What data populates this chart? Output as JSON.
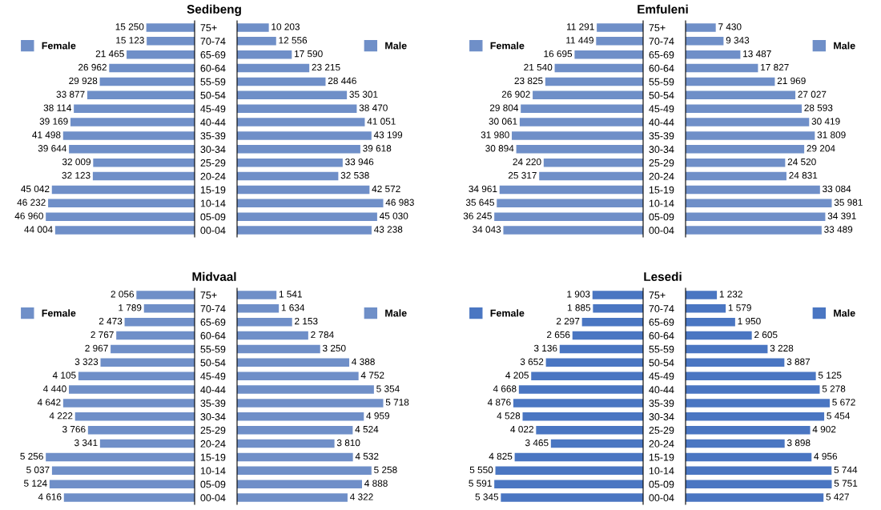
{
  "chart_data": [
    {
      "type": "bar",
      "orientation": "horizontal",
      "title": "Sedibeng",
      "categories": [
        "75+",
        "70-74",
        "65-69",
        "60-64",
        "55-59",
        "50-54",
        "45-49",
        "40-44",
        "35-39",
        "30-34",
        "25-29",
        "20-24",
        "15-19",
        "10-14",
        "05-09",
        "00-04"
      ],
      "tick_labels": "y",
      "legend": "top left",
      "series": [
        {
          "name": "Female",
          "color": "#6f8fc8",
          "values": [
            15250,
            15123,
            21465,
            26962,
            29928,
            33877,
            38114,
            39169,
            41498,
            39644,
            32009,
            32123,
            45042,
            46232,
            46960,
            44004
          ],
          "value_labels": [
            "15 250",
            "15 123",
            "21 465",
            "26 962",
            "29 928",
            "33 877",
            "38 114",
            "39 169",
            "41 498",
            "39 644",
            "32 009",
            "32 123",
            "45 042",
            "46 232",
            "46 960",
            "44 004"
          ]
        }
      ]
    },
    {
      "type": "bar",
      "orientation": "horizontal",
      "categories": [
        null,
        null,
        null,
        null,
        null,
        null,
        null,
        null,
        null,
        null,
        null,
        null,
        null,
        null,
        null,
        null
      ],
      "tick_labels": false,
      "legend": "top right",
      "series": [
        {
          "name": "Male",
          "color": "#6f8fc8",
          "values": [
            10203,
            12556,
            17590,
            23215,
            28446,
            35301,
            38470,
            41051,
            43199,
            39618,
            33946,
            32538,
            42572,
            46983,
            45030,
            43238
          ],
          "value_labels": [
            "10 203",
            "12 556",
            "17 590",
            "23 215",
            "28 446",
            "35 301",
            "38 470",
            "41 051",
            "43 199",
            "39 618",
            "33 946",
            "32 538",
            "42 572",
            "46 983",
            "45 030",
            "43 238"
          ]
        }
      ]
    },
    {
      "type": "bar",
      "orientation": "horizontal",
      "title": "Emfuleni",
      "categories": [
        "75+",
        "70-74",
        "65-69",
        "60-64",
        "55-59",
        "50-54",
        "45-49",
        "40-44",
        "35-39",
        "30-34",
        "25-29",
        "20-24",
        "15-19",
        "10-14",
        "05-09",
        "00-04"
      ],
      "tick_labels": "y",
      "legend": "top left",
      "series": [
        {
          "name": "Female",
          "color": "#6f8fc8",
          "values": [
            11291,
            11449,
            16695,
            21540,
            23825,
            26902,
            29804,
            30061,
            31980,
            30894,
            24220,
            25317,
            34961,
            35645,
            36245,
            34043
          ],
          "value_labels": [
            "11 291",
            "11 449",
            "16 695",
            "21 540",
            "23 825",
            "26 902",
            "29 804",
            "30 061",
            "31 980",
            "30 894",
            "24 220",
            "25 317",
            "34 961",
            "35 645",
            "36 245",
            "34 043"
          ]
        }
      ]
    },
    {
      "type": "bar",
      "orientation": "horizontal",
      "categories": [
        null,
        null,
        null,
        null,
        null,
        null,
        null,
        null,
        null,
        null,
        null,
        null,
        null,
        null,
        null,
        null
      ],
      "tick_labels": false,
      "legend": "top right",
      "series": [
        {
          "name": "Male",
          "color": "#6f8fc8",
          "values": [
            7430,
            9343,
            13487,
            17827,
            21969,
            27027,
            28593,
            30419,
            31809,
            29204,
            24520,
            24831,
            33084,
            35981,
            34391,
            33489
          ],
          "value_labels": [
            "7 430",
            "9 343",
            "13 487",
            "17 827",
            "21 969",
            "27 027",
            "28 593",
            "30 419",
            "31 809",
            "29 204",
            "24 520",
            "24 831",
            "33 084",
            "35 981",
            "34 391",
            "33 489"
          ]
        }
      ]
    },
    {
      "type": "bar",
      "orientation": "horizontal",
      "title": "Midvaal",
      "categories": [
        "75+",
        "70-74",
        "65-69",
        "60-64",
        "55-59",
        "50-54",
        "45-49",
        "40-44",
        "35-39",
        "30-34",
        "25-29",
        "20-24",
        "15-19",
        "10-14",
        "05-09",
        "00-04"
      ],
      "tick_labels": "y",
      "legend": "top left",
      "series": [
        {
          "name": "Female",
          "color": "#6f8fc8",
          "values": [
            2056,
            1789,
            2473,
            2767,
            2967,
            3323,
            4105,
            4440,
            4642,
            4222,
            3766,
            3341,
            5256,
            5037,
            5124,
            4616
          ],
          "value_labels": [
            "2 056",
            "1 789",
            "2 473",
            "2 767",
            "2 967",
            "3 323",
            "4 105",
            "4 440",
            "4 642",
            "4 222",
            "3 766",
            "3 341",
            "5 256",
            "5 037",
            "5 124",
            "4 616"
          ]
        }
      ]
    },
    {
      "type": "bar",
      "orientation": "horizontal",
      "categories": [
        null,
        null,
        null,
        null,
        null,
        null,
        null,
        null,
        null,
        null,
        null,
        null,
        null,
        null,
        null,
        null
      ],
      "tick_labels": false,
      "legend": "top right",
      "series": [
        {
          "name": "Male",
          "color": "#6f8fc8",
          "values": [
            1541,
            1634,
            2153,
            2784,
            3250,
            4388,
            4752,
            5354,
            5718,
            4959,
            4524,
            3810,
            4532,
            5258,
            4888,
            4322
          ],
          "value_labels": [
            "1 541",
            "1 634",
            "2 153",
            "2 784",
            "3 250",
            "4 388",
            "4 752",
            "5 354",
            "5 718",
            "4 959",
            "4 524",
            "3 810",
            "4 532",
            "5 258",
            "4 888",
            "4 322"
          ]
        }
      ]
    },
    {
      "type": "bar",
      "orientation": "horizontal",
      "title": "Lesedi",
      "categories": [
        "75+",
        "70-74",
        "65-69",
        "60-64",
        "55-59",
        "50-54",
        "45-49",
        "40-44",
        "35-39",
        "30-34",
        "25-29",
        "20-24",
        "15-19",
        "10-14",
        "05-09",
        "00-04"
      ],
      "tick_labels": "y",
      "legend": "top left",
      "series": [
        {
          "name": "Female",
          "color": "#4a76c2",
          "values": [
            1903,
            1885,
            2297,
            2656,
            3136,
            3652,
            4205,
            4668,
            4876,
            4528,
            4022,
            3465,
            4825,
            5550,
            5591,
            5345
          ],
          "value_labels": [
            "1 903",
            "1 885",
            "2 297",
            "2 656",
            "3 136",
            "3 652",
            "4 205",
            "4 668",
            "4 876",
            "4 528",
            "4 022",
            "3 465",
            "4 825",
            "5 550",
            "5 591",
            "5 345"
          ]
        }
      ]
    },
    {
      "type": "bar",
      "orientation": "horizontal",
      "categories": [
        null,
        null,
        null,
        null,
        null,
        null,
        null,
        null,
        null,
        null,
        null,
        null,
        null,
        null,
        null,
        null
      ],
      "tick_labels": false,
      "legend": "top right",
      "series": [
        {
          "name": "Male",
          "color": "#4a76c2",
          "values": [
            1232,
            1579,
            1950,
            2605,
            3228,
            3887,
            5125,
            5278,
            5672,
            5454,
            4902,
            3898,
            4956,
            5744,
            5751,
            5427
          ],
          "value_labels": [
            "1 232",
            "1 579",
            "1 950",
            "2 605",
            "3 228",
            "3 887",
            "5 125",
            "5 278",
            "5 672",
            "5 454",
            "4 902",
            "3 898",
            "4 956",
            "5 744",
            "5 751",
            "5 427"
          ]
        }
      ]
    }
  ]
}
